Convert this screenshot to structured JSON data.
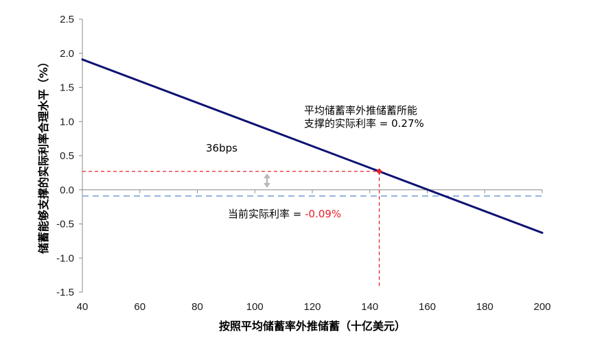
{
  "chart_data": {
    "type": "line",
    "xlabel": "按照平均储蓄率外推储蓄（十亿美元）",
    "ylabel": "储蓄能够支撑的实际利率合理水平（%）",
    "xlim": [
      40,
      200
    ],
    "ylim": [
      -1.5,
      2.5
    ],
    "x_ticks": [
      "40",
      "60",
      "80",
      "100",
      "120",
      "140",
      "160",
      "180",
      "200"
    ],
    "y_ticks": [
      "-1.5",
      "-1.0",
      "-0.5",
      "0.0",
      "0.5",
      "1.0",
      "1.5",
      "2.0",
      "2.5"
    ],
    "grid": false,
    "series": [
      {
        "x": [
          40,
          200
        ],
        "y": [
          1.91,
          -0.63
        ],
        "color": "#0d1273"
      }
    ],
    "marked_point": {
      "x": 143.3,
      "y": 0.27,
      "color": "#e8202a"
    },
    "current_rate_line": {
      "y": -0.09,
      "color": "#8fb1db"
    },
    "annotations": {
      "spread": "36bps",
      "extrapolated_line1": "平均储蓄率外推储蓄所能",
      "extrapolated_line2": "支撑的实际利率 = 0.27%",
      "current_label": "当前实际利率 = ",
      "current_value": "-0.09%"
    }
  }
}
